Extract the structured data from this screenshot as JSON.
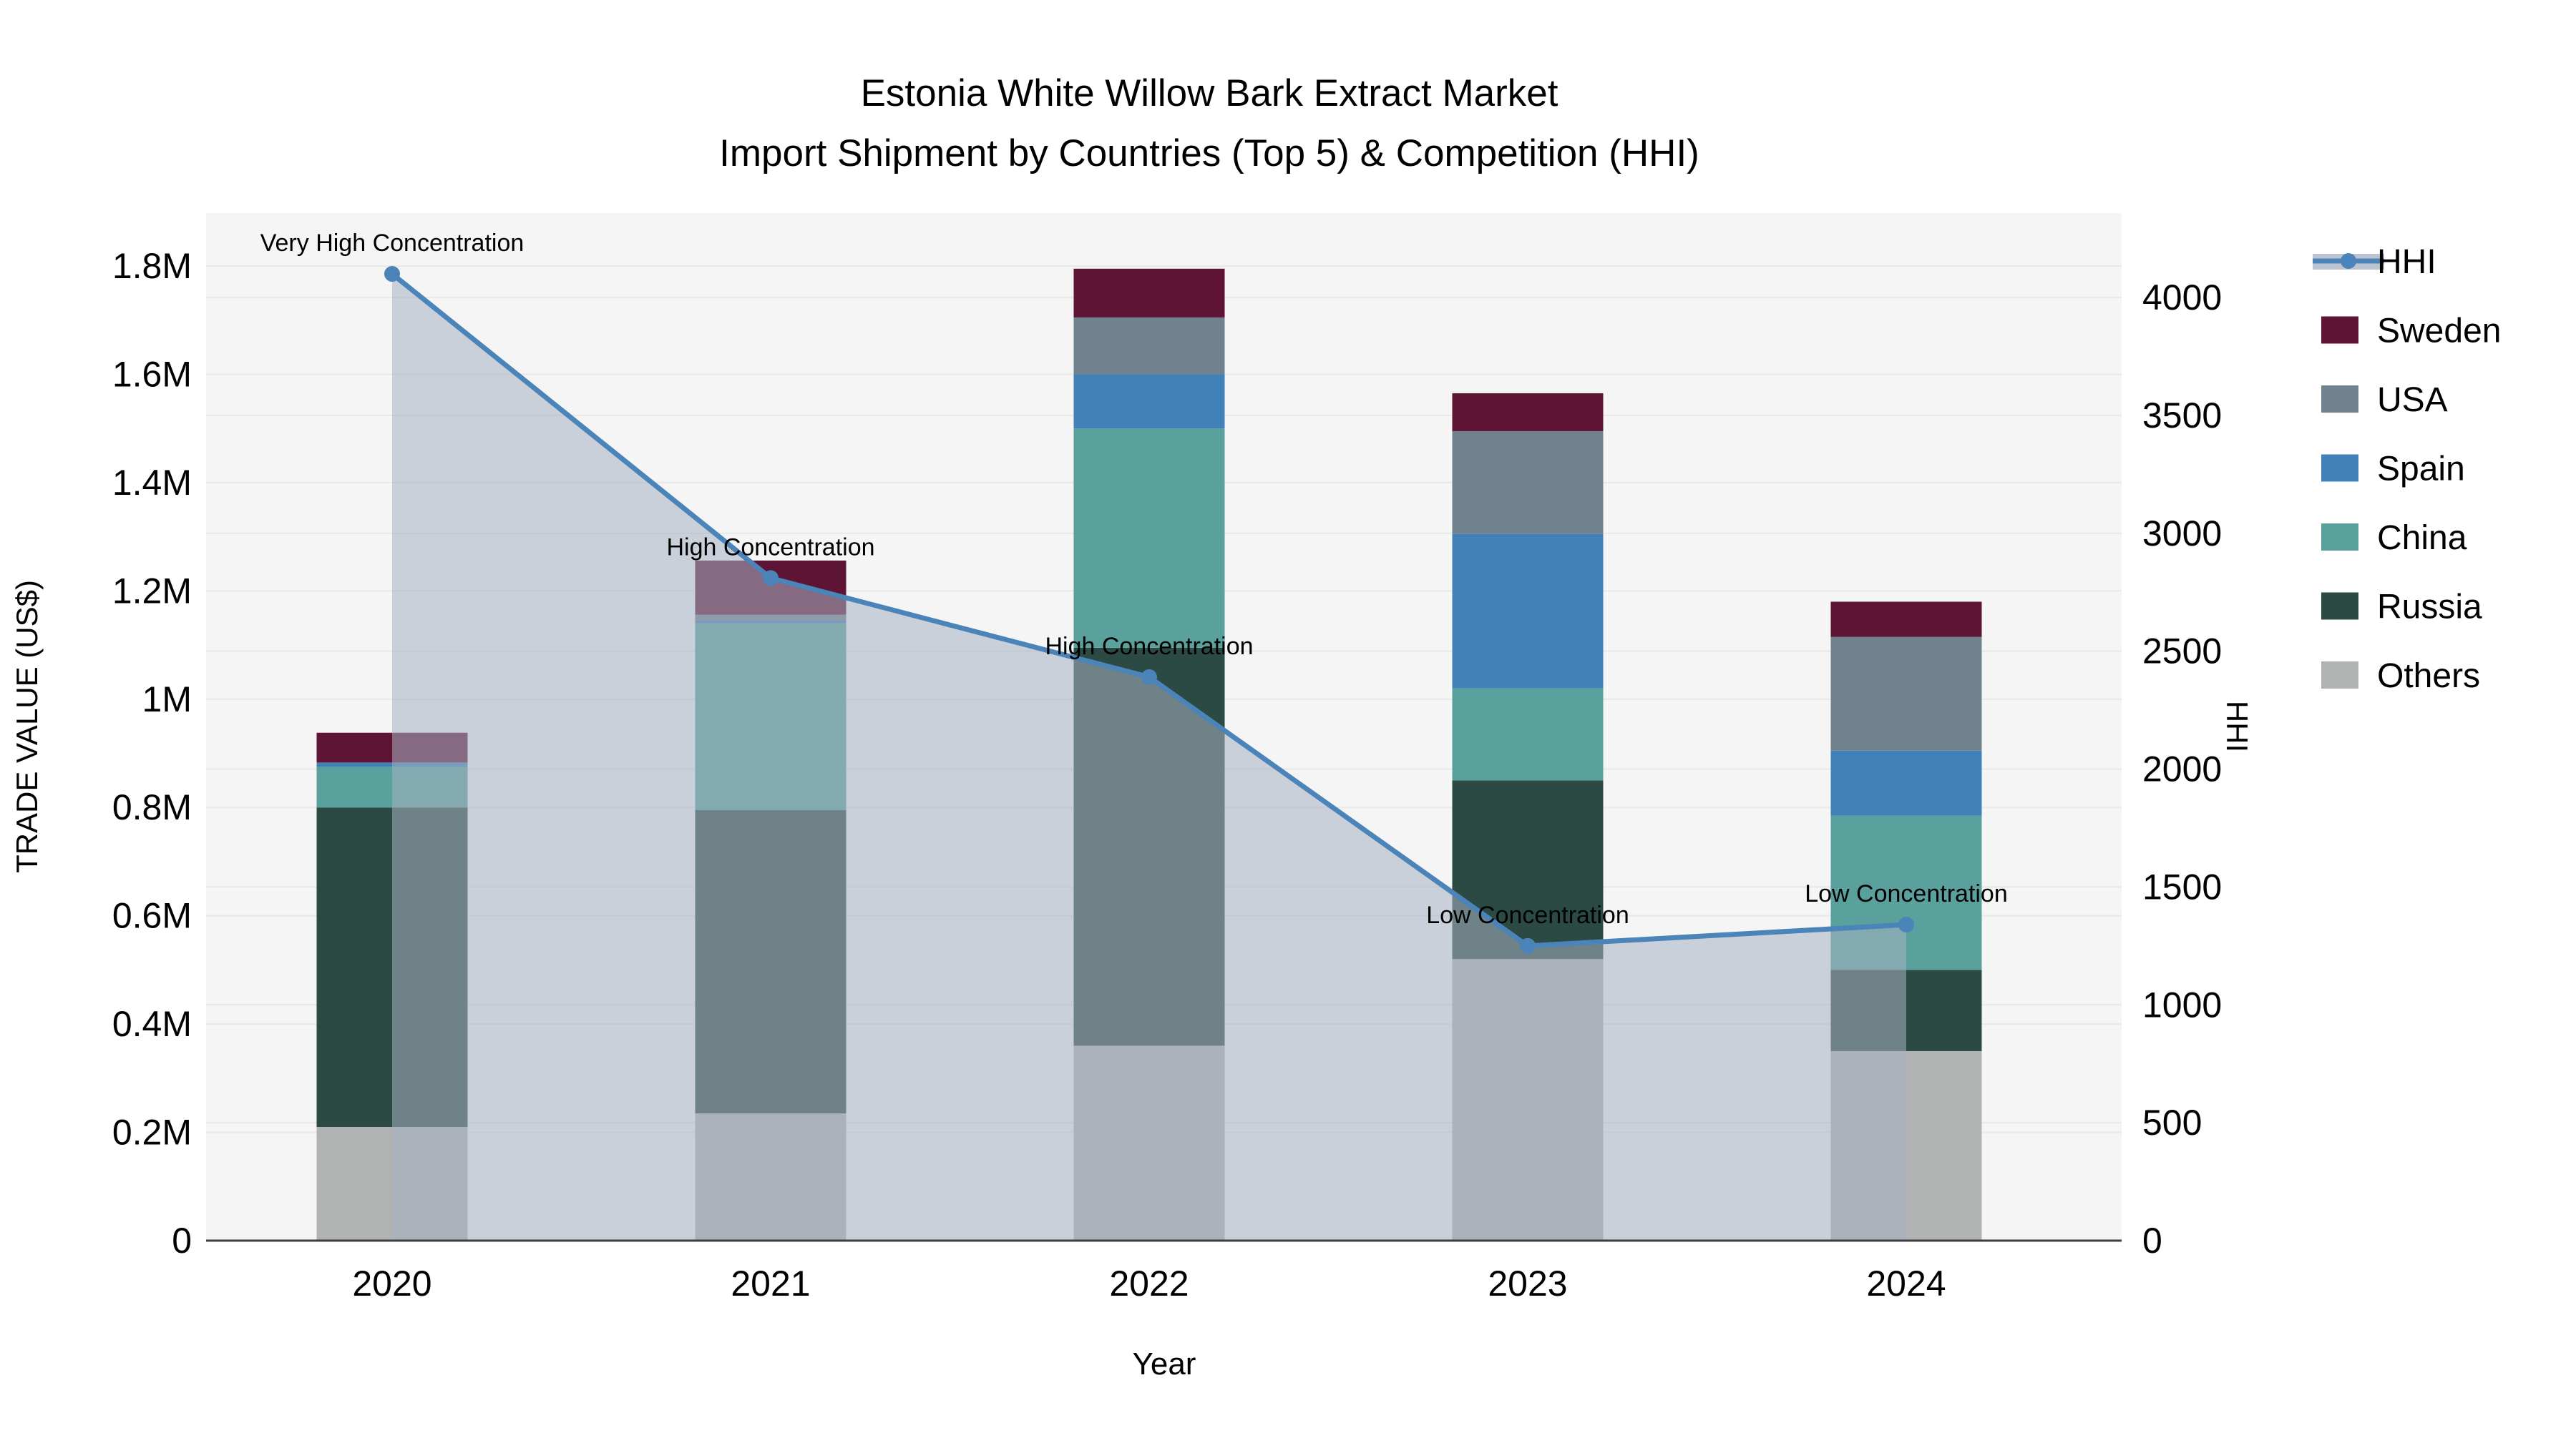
{
  "title": {
    "line1": "Estonia White Willow Bark Extract Market",
    "line2": "Import Shipment by Countries (Top 5) & Competition (HHI)"
  },
  "axes": {
    "x": {
      "label": "Year",
      "ticks": [
        "2020",
        "2021",
        "2022",
        "2023",
        "2024"
      ]
    },
    "y_left": {
      "label": "TRADE VALUE (US$)",
      "ticks": [
        "0",
        "0.2M",
        "0.4M",
        "0.6M",
        "0.8M",
        "1M",
        "1.2M",
        "1.4M",
        "1.6M",
        "1.8M"
      ],
      "tick_values": [
        0,
        200000,
        400000,
        600000,
        800000,
        1000000,
        1200000,
        1400000,
        1600000,
        1800000
      ],
      "max": 1800000
    },
    "y_right": {
      "label": "HHI",
      "ticks": [
        "0",
        "500",
        "1000",
        "1500",
        "2000",
        "2500",
        "3000",
        "3500",
        "4000"
      ],
      "tick_values": [
        0,
        500,
        1000,
        1500,
        2000,
        2500,
        3000,
        3500,
        4000
      ],
      "max": 4000
    }
  },
  "legend": {
    "items": [
      {
        "label": "HHI",
        "type": "line",
        "color": "#4a84b8"
      },
      {
        "label": "Sweden",
        "type": "square",
        "color": "#5e1435"
      },
      {
        "label": "USA",
        "type": "square",
        "color": "#71828f"
      },
      {
        "label": "Spain",
        "type": "square",
        "color": "#4281b7"
      },
      {
        "label": "China",
        "type": "square",
        "color": "#5aa09d"
      },
      {
        "label": "Russia",
        "type": "square",
        "color": "#2c4a44"
      },
      {
        "label": "Others",
        "type": "square",
        "color": "#b1b3b3"
      }
    ]
  },
  "chart_data": {
    "type": "bar",
    "subtype": "stacked-bar-with-line-overlay",
    "categories": [
      "2020",
      "2021",
      "2022",
      "2023",
      "2024"
    ],
    "series": [
      {
        "name": "Others",
        "color": "#b1b3b3",
        "values": [
          210000,
          235000,
          360000,
          520000,
          350000
        ]
      },
      {
        "name": "Russia",
        "color": "#2c4a44",
        "values": [
          590000,
          560000,
          735000,
          330000,
          150000
        ]
      },
      {
        "name": "China",
        "color": "#5aa09d",
        "values": [
          75000,
          345000,
          405000,
          170000,
          285000
        ]
      },
      {
        "name": "Spain",
        "color": "#4281b7",
        "values": [
          8000,
          5000,
          100000,
          285000,
          120000
        ]
      },
      {
        "name": "USA",
        "color": "#71828f",
        "values": [
          0,
          11000,
          105000,
          190000,
          210000
        ]
      },
      {
        "name": "Sweden",
        "color": "#5e1435",
        "values": [
          55000,
          100000,
          90000,
          70000,
          65000
        ]
      }
    ],
    "bar_totals": [
      938000,
      1256000,
      1795000,
      1565000,
      1180000
    ],
    "line_series": {
      "name": "HHI",
      "axis": "right",
      "color": "#4a84b8",
      "area_fill": "rgba(166,176,193,0.55)",
      "values": [
        4100,
        2810,
        2390,
        1250,
        1340
      ]
    },
    "annotations": [
      {
        "category": "2020",
        "text": "Very High Concentration"
      },
      {
        "category": "2021",
        "text": "High Concentration"
      },
      {
        "category": "2022",
        "text": "High Concentration"
      },
      {
        "category": "2023",
        "text": "Low Concentration"
      },
      {
        "category": "2024",
        "text": "Low Concentration"
      }
    ],
    "title": "Estonia White Willow Bark Extract Market — Import Shipment by Countries (Top 5) & Competition (HHI)",
    "xlabel": "Year",
    "ylabel_left": "TRADE VALUE (US$)",
    "ylabel_right": "HHI",
    "ylim_left": [
      0,
      1900000
    ],
    "ylim_right": [
      0,
      4200
    ],
    "grid": true,
    "legend_position": "right"
  },
  "colors": {
    "plot_background": "#f5f5f5",
    "figure_background": "#ffffff",
    "gridline": "#e8e8e8",
    "axis_line": "#3d3d3d",
    "hhi_line": "#4a84b8"
  }
}
